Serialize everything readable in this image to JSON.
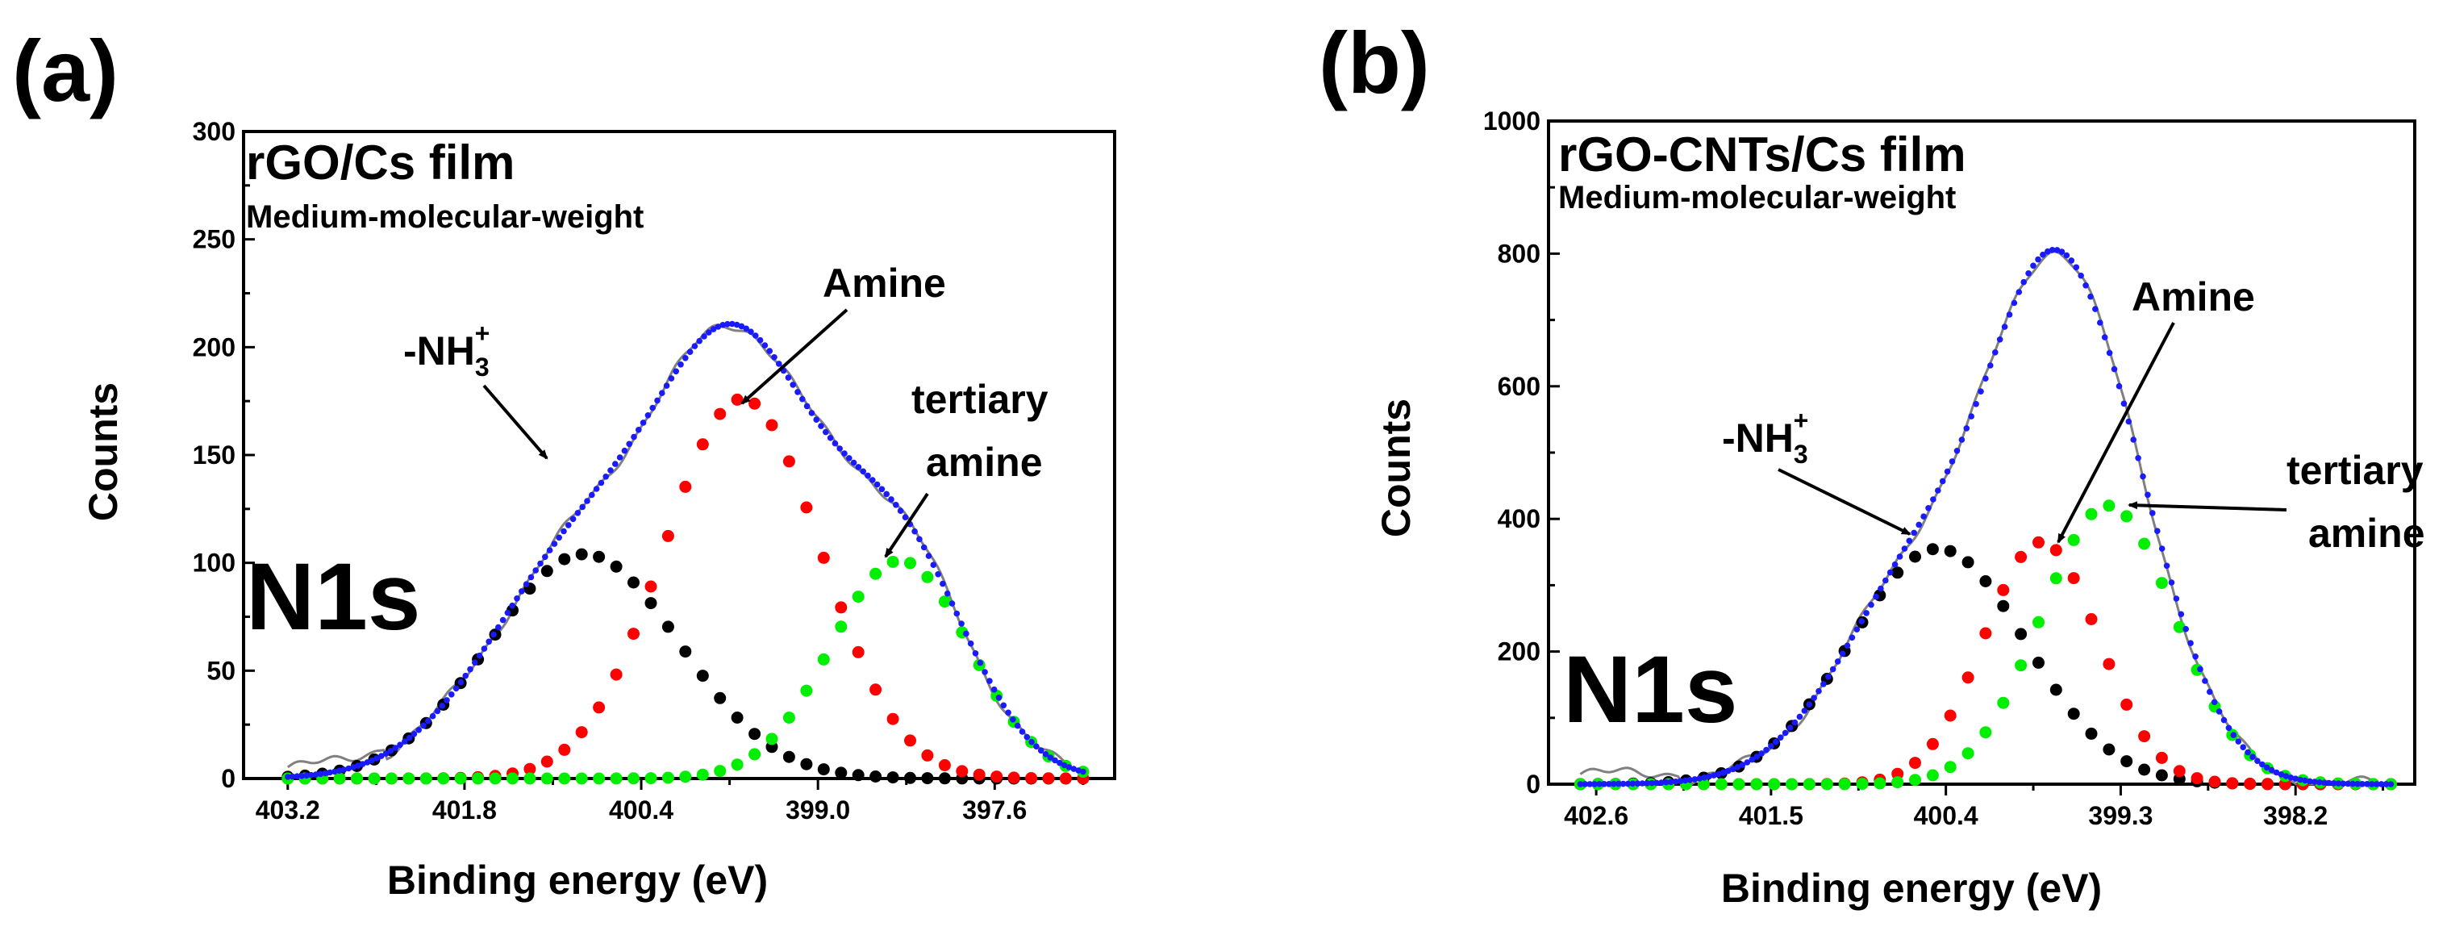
{
  "figure": {
    "colors": {
      "envelope": "#1a1aff",
      "nh3": "#000000",
      "amine": "#ff0000",
      "tertiary_amine": "#00ee00",
      "raw_data": "#808080",
      "frame": "#000000"
    }
  },
  "chart_data": [
    {
      "panel_label": "(a)",
      "type": "line",
      "title": "rGO/Cs film",
      "subtitle": "Medium-molecular-weight",
      "core_level_label": "N1s",
      "xlabel": "Binding energy (eV)",
      "ylabel": "Counts",
      "x_reversed": true,
      "xlim": [
        403.55,
        396.65
      ],
      "ylim": [
        0,
        300
      ],
      "xticks": [
        403.2,
        401.8,
        400.4,
        399.0,
        397.6
      ],
      "xtick_labels": [
        "403.2",
        "401.8",
        "400.4",
        "399.0",
        "397.6"
      ],
      "yticks": [
        0,
        50,
        100,
        150,
        200,
        250,
        300
      ],
      "ytick_labels": [
        "0",
        "50",
        "100",
        "150",
        "200",
        "250",
        "300"
      ],
      "annotations": [
        {
          "text": "-NH",
          "sub": "3",
          "sup": "+",
          "points_to_x": 401.3,
          "points_to_y": 147
        },
        {
          "text": "Amine",
          "points_to_x": 399.65,
          "points_to_y": 176
        },
        {
          "text": "tertiary",
          "text2": "amine",
          "points_to_x": 398.2,
          "points_to_y": 101
        }
      ],
      "series": [
        {
          "name": "-NH3+",
          "style": "dots",
          "color_key": "nh3",
          "center": 400.85,
          "amplitude": 104,
          "sigma": 0.75
        },
        {
          "name": "Amine",
          "style": "dots",
          "color_key": "amine",
          "center": 399.6,
          "amplitude": 176,
          "sigma": 0.62
        },
        {
          "name": "tertiary amine",
          "style": "dots",
          "color_key": "tertiary_amine",
          "center": 398.35,
          "amplitude": 101,
          "sigma": 0.55
        },
        {
          "name": "envelope",
          "style": "dotted-line",
          "color_key": "envelope"
        },
        {
          "name": "raw data",
          "style": "line",
          "color_key": "raw_data"
        }
      ],
      "xrange_points": [
        403.2,
        396.9
      ]
    },
    {
      "panel_label": "(b)",
      "type": "line",
      "title": "rGO-CNTs/Cs film",
      "subtitle": "Medium-molecular-weight",
      "core_level_label": "N1s",
      "xlabel": "Binding energy (eV)",
      "ylabel": "Counts",
      "x_reversed": true,
      "xlim": [
        402.9,
        397.45
      ],
      "ylim": [
        0,
        1000
      ],
      "xticks": [
        402.6,
        401.5,
        400.4,
        399.3,
        398.2
      ],
      "xtick_labels": [
        "402.6",
        "401.5",
        "400.4",
        "399.3",
        "398.2"
      ],
      "yticks": [
        0,
        200,
        400,
        600,
        800,
        1000
      ],
      "ytick_labels": [
        "0",
        "200",
        "400",
        "600",
        "800",
        "1000"
      ],
      "annotations": [
        {
          "text": "-NH",
          "sub": "3",
          "sup": "+",
          "points_to_x": 400.62,
          "points_to_y": 375
        },
        {
          "text": "Amine",
          "points_to_x": 399.72,
          "points_to_y": 365
        },
        {
          "text": "tertiary",
          "text2": "amine",
          "points_to_x": 399.2,
          "points_to_y": 418
        }
      ],
      "series": [
        {
          "name": "-NH3+",
          "style": "dots",
          "color_key": "nh3",
          "center": 400.45,
          "amplitude": 355,
          "sigma": 0.55
        },
        {
          "name": "Amine",
          "style": "dots",
          "color_key": "amine",
          "center": 399.8,
          "amplitude": 365,
          "sigma": 0.36
        },
        {
          "name": "tertiary amine",
          "style": "dots",
          "color_key": "tertiary_amine",
          "center": 399.38,
          "amplitude": 420,
          "sigma": 0.42
        },
        {
          "name": "envelope",
          "style": "dotted-line",
          "color_key": "envelope"
        },
        {
          "name": "raw data",
          "style": "line",
          "color_key": "raw_data"
        }
      ],
      "xrange_points": [
        402.7,
        397.6
      ]
    }
  ]
}
